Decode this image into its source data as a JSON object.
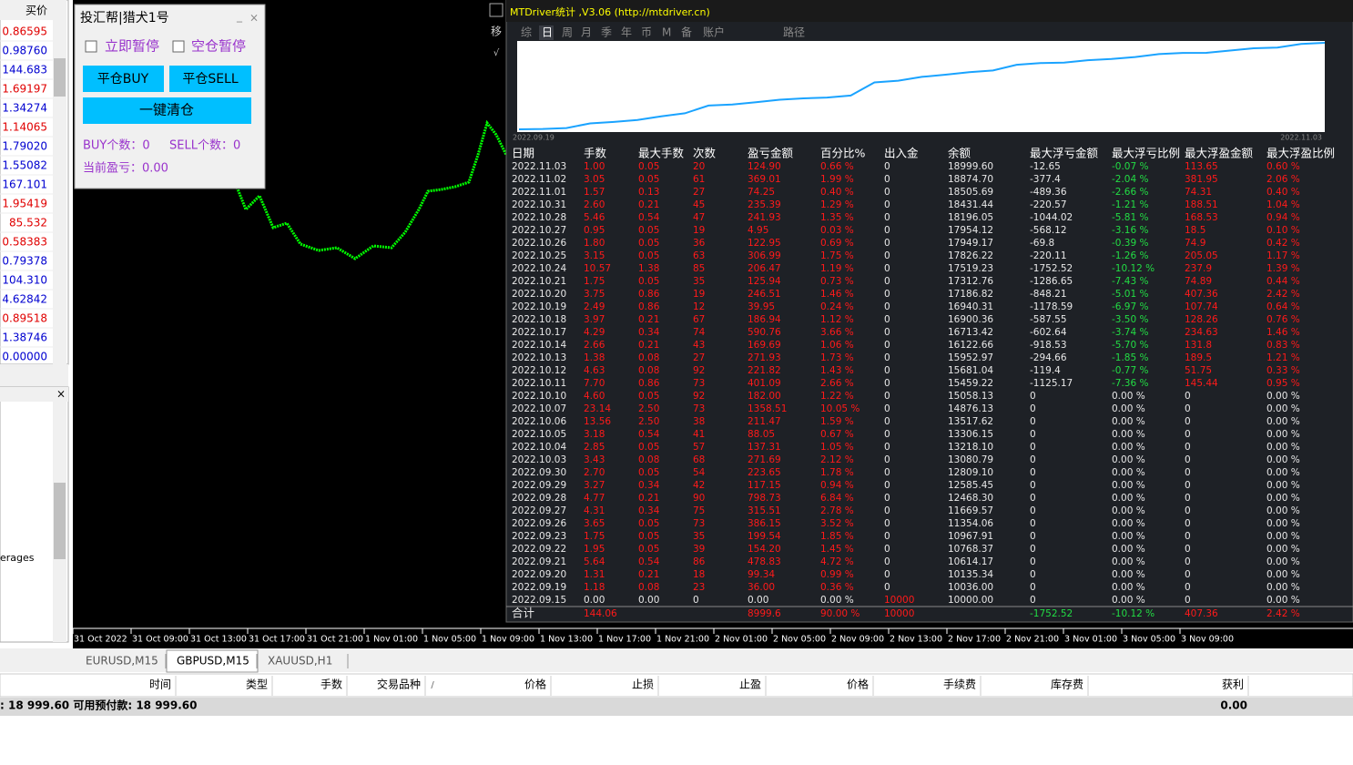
{
  "market_watch": {
    "header": "买价",
    "prices": [
      "0.86595",
      "0.98760",
      "144.683",
      "1.69197",
      "1.34274",
      "1.14065",
      "1.79020",
      "1.55082",
      "167.101",
      "1.95419",
      "85.532",
      "0.58383",
      "0.79378",
      "104.310",
      "4.62842",
      "0.89518",
      "1.38746",
      "0.00000"
    ]
  },
  "navigator": {
    "close": "×",
    "item": "erages"
  },
  "ea_panel": {
    "title": "投汇帮|猎犬1号",
    "minimize": "_",
    "close": "×",
    "checkboxes": [
      "立即暂停",
      "空仓暂停"
    ],
    "buttons": [
      "平仓BUY",
      "平仓SELL",
      "一键清仓"
    ],
    "buy_count": "BUY个数：0",
    "sell_count": "SELL个数：0",
    "pnl": "当前盈亏：0.00"
  },
  "stats_panel": {
    "title": "MTDriver统计 ,V3.06 (http://mtdriver.cn)",
    "side_icons": [
      "移",
      "√"
    ],
    "tabs": [
      "综",
      "日",
      "周",
      "月",
      "季",
      "年",
      "币",
      "M",
      "备",
      "账户",
      "路径"
    ],
    "chart_start": "2022.09.19",
    "chart_end": "2022.11.03",
    "columns": [
      "日期",
      "手数",
      "最大手数",
      "次数",
      "盈亏金额",
      "百分比%",
      "出入金",
      "余额",
      "最大浮亏金额",
      "最大浮亏比例",
      "最大浮盈金额",
      "最大浮盈比例"
    ],
    "rows": [
      [
        "2022.11.03",
        "1.00",
        "0.05",
        "20",
        "124.90",
        "0.66 %",
        "0",
        "18999.60",
        "-12.65",
        "-0.07 %",
        "113.65",
        "0.60 %"
      ],
      [
        "2022.11.02",
        "3.05",
        "0.05",
        "61",
        "369.01",
        "1.99 %",
        "0",
        "18874.70",
        "-377.4",
        "-2.04 %",
        "381.95",
        "2.06 %"
      ],
      [
        "2022.11.01",
        "1.57",
        "0.13",
        "27",
        "74.25",
        "0.40 %",
        "0",
        "18505.69",
        "-489.36",
        "-2.66 %",
        "74.31",
        "0.40 %"
      ],
      [
        "2022.10.31",
        "2.60",
        "0.21",
        "45",
        "235.39",
        "1.29 %",
        "0",
        "18431.44",
        "-220.57",
        "-1.21 %",
        "188.51",
        "1.04 %"
      ],
      [
        "2022.10.28",
        "5.46",
        "0.54",
        "47",
        "241.93",
        "1.35 %",
        "0",
        "18196.05",
        "-1044.02",
        "-5.81 %",
        "168.53",
        "0.94 %"
      ],
      [
        "2022.10.27",
        "0.95",
        "0.05",
        "19",
        "4.95",
        "0.03 %",
        "0",
        "17954.12",
        "-568.12",
        "-3.16 %",
        "18.5",
        "0.10 %"
      ],
      [
        "2022.10.26",
        "1.80",
        "0.05",
        "36",
        "122.95",
        "0.69 %",
        "0",
        "17949.17",
        "-69.8",
        "-0.39 %",
        "74.9",
        "0.42 %"
      ],
      [
        "2022.10.25",
        "3.15",
        "0.05",
        "63",
        "306.99",
        "1.75 %",
        "0",
        "17826.22",
        "-220.11",
        "-1.26 %",
        "205.05",
        "1.17 %"
      ],
      [
        "2022.10.24",
        "10.57",
        "1.38",
        "85",
        "206.47",
        "1.19 %",
        "0",
        "17519.23",
        "-1752.52",
        "-10.12 %",
        "237.9",
        "1.39 %"
      ],
      [
        "2022.10.21",
        "1.75",
        "0.05",
        "35",
        "125.94",
        "0.73 %",
        "0",
        "17312.76",
        "-1286.65",
        "-7.43 %",
        "74.89",
        "0.44 %"
      ],
      [
        "2022.10.20",
        "3.75",
        "0.86",
        "19",
        "246.51",
        "1.46 %",
        "0",
        "17186.82",
        "-848.21",
        "-5.01 %",
        "407.36",
        "2.42 %"
      ],
      [
        "2022.10.19",
        "2.49",
        "0.86",
        "12",
        "39.95",
        "0.24 %",
        "0",
        "16940.31",
        "-1178.59",
        "-6.97 %",
        "107.74",
        "0.64 %"
      ],
      [
        "2022.10.18",
        "3.97",
        "0.21",
        "67",
        "186.94",
        "1.12 %",
        "0",
        "16900.36",
        "-587.55",
        "-3.50 %",
        "128.26",
        "0.76 %"
      ],
      [
        "2022.10.17",
        "4.29",
        "0.34",
        "74",
        "590.76",
        "3.66 %",
        "0",
        "16713.42",
        "-602.64",
        "-3.74 %",
        "234.63",
        "1.46 %"
      ],
      [
        "2022.10.14",
        "2.66",
        "0.21",
        "43",
        "169.69",
        "1.06 %",
        "0",
        "16122.66",
        "-918.53",
        "-5.70 %",
        "131.8",
        "0.83 %"
      ],
      [
        "2022.10.13",
        "1.38",
        "0.08",
        "27",
        "271.93",
        "1.73 %",
        "0",
        "15952.97",
        "-294.66",
        "-1.85 %",
        "189.5",
        "1.21 %"
      ],
      [
        "2022.10.12",
        "4.63",
        "0.08",
        "92",
        "221.82",
        "1.43 %",
        "0",
        "15681.04",
        "-119.4",
        "-0.77 %",
        "51.75",
        "0.33 %"
      ],
      [
        "2022.10.11",
        "7.70",
        "0.86",
        "73",
        "401.09",
        "2.66 %",
        "0",
        "15459.22",
        "-1125.17",
        "-7.36 %",
        "145.44",
        "0.95 %"
      ],
      [
        "2022.10.10",
        "4.60",
        "0.05",
        "92",
        "182.00",
        "1.22 %",
        "0",
        "15058.13",
        "0",
        "0.00 %",
        "0",
        "0.00 %"
      ],
      [
        "2022.10.07",
        "23.14",
        "2.50",
        "73",
        "1358.51",
        "10.05 %",
        "0",
        "14876.13",
        "0",
        "0.00 %",
        "0",
        "0.00 %"
      ],
      [
        "2022.10.06",
        "13.56",
        "2.50",
        "38",
        "211.47",
        "1.59 %",
        "0",
        "13517.62",
        "0",
        "0.00 %",
        "0",
        "0.00 %"
      ],
      [
        "2022.10.05",
        "3.18",
        "0.54",
        "41",
        "88.05",
        "0.67 %",
        "0",
        "13306.15",
        "0",
        "0.00 %",
        "0",
        "0.00 %"
      ],
      [
        "2022.10.04",
        "2.85",
        "0.05",
        "57",
        "137.31",
        "1.05 %",
        "0",
        "13218.10",
        "0",
        "0.00 %",
        "0",
        "0.00 %"
      ],
      [
        "2022.10.03",
        "3.43",
        "0.08",
        "68",
        "271.69",
        "2.12 %",
        "0",
        "13080.79",
        "0",
        "0.00 %",
        "0",
        "0.00 %"
      ],
      [
        "2022.09.30",
        "2.70",
        "0.05",
        "54",
        "223.65",
        "1.78 %",
        "0",
        "12809.10",
        "0",
        "0.00 %",
        "0",
        "0.00 %"
      ],
      [
        "2022.09.29",
        "3.27",
        "0.34",
        "42",
        "117.15",
        "0.94 %",
        "0",
        "12585.45",
        "0",
        "0.00 %",
        "0",
        "0.00 %"
      ],
      [
        "2022.09.28",
        "4.77",
        "0.21",
        "90",
        "798.73",
        "6.84 %",
        "0",
        "12468.30",
        "0",
        "0.00 %",
        "0",
        "0.00 %"
      ],
      [
        "2022.09.27",
        "4.31",
        "0.34",
        "75",
        "315.51",
        "2.78 %",
        "0",
        "11669.57",
        "0",
        "0.00 %",
        "0",
        "0.00 %"
      ],
      [
        "2022.09.26",
        "3.65",
        "0.05",
        "73",
        "386.15",
        "3.52 %",
        "0",
        "11354.06",
        "0",
        "0.00 %",
        "0",
        "0.00 %"
      ],
      [
        "2022.09.23",
        "1.75",
        "0.05",
        "35",
        "199.54",
        "1.85 %",
        "0",
        "10967.91",
        "0",
        "0.00 %",
        "0",
        "0.00 %"
      ],
      [
        "2022.09.22",
        "1.95",
        "0.05",
        "39",
        "154.20",
        "1.45 %",
        "0",
        "10768.37",
        "0",
        "0.00 %",
        "0",
        "0.00 %"
      ],
      [
        "2022.09.21",
        "5.64",
        "0.54",
        "86",
        "478.83",
        "4.72 %",
        "0",
        "10614.17",
        "0",
        "0.00 %",
        "0",
        "0.00 %"
      ],
      [
        "2022.09.20",
        "1.31",
        "0.21",
        "18",
        "99.34",
        "0.99 %",
        "0",
        "10135.34",
        "0",
        "0.00 %",
        "0",
        "0.00 %"
      ],
      [
        "2022.09.19",
        "1.18",
        "0.08",
        "23",
        "36.00",
        "0.36 %",
        "0",
        "10036.00",
        "0",
        "0.00 %",
        "0",
        "0.00 %"
      ],
      [
        "2022.09.15",
        "0.00",
        "0.00",
        "0",
        "0.00",
        "0.00 %",
        "10000",
        "10000.00",
        "0",
        "0.00 %",
        "0",
        "0.00 %"
      ]
    ],
    "total": [
      "合计",
      "144.06",
      null,
      null,
      "8999.6",
      "90.00 %",
      "10000",
      null,
      "-1752.52",
      "-10.12 %",
      "407.36",
      "2.42 %"
    ]
  },
  "time_axis": [
    "31 Oct 2022",
    "31 Oct 09:00",
    "31 Oct 13:00",
    "31 Oct 17:00",
    "31 Oct 21:00",
    "1 Nov 01:00",
    "1 Nov 05:00",
    "1 Nov 09:00",
    "1 Nov 13:00",
    "1 Nov 17:00",
    "1 Nov 21:00",
    "2 Nov 01:00",
    "2 Nov 05:00",
    "2 Nov 09:00",
    "2 Nov 13:00",
    "2 Nov 17:00",
    "2 Nov 21:00",
    "3 Nov 01:00",
    "3 Nov 05:00",
    "3 Nov 09:00"
  ],
  "chart_tabs": [
    "EURUSD,M15",
    "GBPUSD,M15",
    "XAUUSD,H1"
  ],
  "terminal": {
    "columns": [
      "时间",
      "类型",
      "手数",
      "交易品种",
      "价格",
      "止损",
      "止盈",
      "价格",
      "手续费",
      "库存费",
      "获利"
    ],
    "sort_marker": "/",
    "balance": ": 18 999.60  可用预付款: 18 999.60",
    "profit": "0.00"
  }
}
